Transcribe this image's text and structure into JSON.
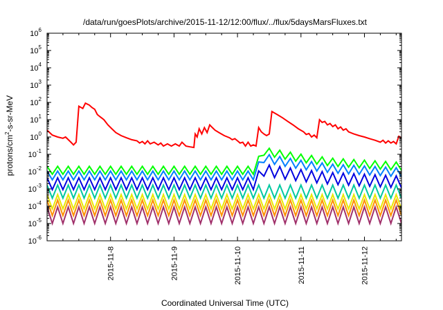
{
  "chart_data": {
    "type": "line",
    "title": "/data/run/goesPlots/archive/2015-11-12/12:00/flux/../flux/5daysMarsFluxes.txt",
    "xlabel": "Coordinated Universal Time (UTC)",
    "ylabel": {
      "base": "protons/cm",
      "sup": "2",
      "rest": "-s-sr-MeV"
    },
    "y_scale": "log",
    "ylim": [
      1e-06,
      1000000.0
    ],
    "xlim": [
      "2015-11-07T00:00",
      "2015-11-12T14:00"
    ],
    "x_ticks": [
      "2015-11-8",
      "2015-11-9",
      "2015-11-10",
      "2015-11-11",
      "2015-11-12"
    ],
    "y_ticks": [
      {
        "base": "10",
        "exp": "-6"
      },
      {
        "base": "10",
        "exp": "-5"
      },
      {
        "base": "10",
        "exp": "-4"
      },
      {
        "base": "10",
        "exp": "-3"
      },
      {
        "base": "10",
        "exp": "-2"
      },
      {
        "base": "10",
        "exp": "-1"
      },
      {
        "base": "10",
        "exp": "0"
      },
      {
        "base": "10",
        "exp": "1"
      },
      {
        "base": "10",
        "exp": "2"
      },
      {
        "base": "10",
        "exp": "3"
      },
      {
        "base": "10",
        "exp": "4"
      },
      {
        "base": "10",
        "exp": "5"
      },
      {
        "base": "10",
        "exp": "6"
      }
    ],
    "grid": false,
    "legend": "none",
    "series": [
      {
        "color": "#ff0000",
        "points": [
          [
            "2015-11-07T00:00",
            2.5
          ],
          [
            "2015-11-07T02:00",
            1.3
          ],
          [
            "2015-11-07T04:00",
            1.0
          ],
          [
            "2015-11-07T06:00",
            0.85
          ],
          [
            "2015-11-07T07:00",
            1.0
          ],
          [
            "2015-11-07T09:00",
            0.5
          ],
          [
            "2015-11-07T10:00",
            0.35
          ],
          [
            "2015-11-07T11:00",
            0.5
          ],
          [
            "2015-11-07T12:00",
            60
          ],
          [
            "2015-11-07T13:30",
            45
          ],
          [
            "2015-11-07T14:30",
            90
          ],
          [
            "2015-11-07T16:00",
            70
          ],
          [
            "2015-11-07T17:00",
            50
          ],
          [
            "2015-11-07T18:00",
            40
          ],
          [
            "2015-11-07T19:00",
            20
          ],
          [
            "2015-11-07T20:00",
            15
          ],
          [
            "2015-11-07T21:30",
            10
          ],
          [
            "2015-11-07T23:00",
            5
          ],
          [
            "2015-11-08T00:30",
            3
          ],
          [
            "2015-11-08T02:00",
            1.8
          ],
          [
            "2015-11-08T04:00",
            1.2
          ],
          [
            "2015-11-08T06:00",
            0.9
          ],
          [
            "2015-11-08T08:00",
            0.7
          ],
          [
            "2015-11-08T10:00",
            0.6
          ],
          [
            "2015-11-08T11:00",
            0.45
          ],
          [
            "2015-11-08T12:00",
            0.55
          ],
          [
            "2015-11-08T13:00",
            0.4
          ],
          [
            "2015-11-08T14:00",
            0.6
          ],
          [
            "2015-11-08T15:00",
            0.4
          ],
          [
            "2015-11-08T16:30",
            0.5
          ],
          [
            "2015-11-08T18:00",
            0.35
          ],
          [
            "2015-11-08T19:00",
            0.45
          ],
          [
            "2015-11-08T20:00",
            0.3
          ],
          [
            "2015-11-08T21:30",
            0.4
          ],
          [
            "2015-11-08T23:00",
            0.3
          ],
          [
            "2015-11-09T00:30",
            0.4
          ],
          [
            "2015-11-09T02:00",
            0.3
          ],
          [
            "2015-11-09T03:00",
            0.5
          ],
          [
            "2015-11-09T04:30",
            0.3
          ],
          [
            "2015-11-09T06:00",
            0.27
          ],
          [
            "2015-11-09T07:30",
            0.25
          ],
          [
            "2015-11-09T08:00",
            1.5
          ],
          [
            "2015-11-09T08:45",
            1.0
          ],
          [
            "2015-11-09T09:30",
            3.0
          ],
          [
            "2015-11-09T10:30",
            1.5
          ],
          [
            "2015-11-09T11:30",
            3.5
          ],
          [
            "2015-11-09T12:30",
            1.8
          ],
          [
            "2015-11-09T13:30",
            5.0
          ],
          [
            "2015-11-09T14:30",
            3.5
          ],
          [
            "2015-11-09T15:30",
            2.5
          ],
          [
            "2015-11-09T17:00",
            1.8
          ],
          [
            "2015-11-09T19:00",
            1.2
          ],
          [
            "2015-11-09T21:00",
            0.9
          ],
          [
            "2015-11-09T22:00",
            0.7
          ],
          [
            "2015-11-09T23:00",
            0.8
          ],
          [
            "2015-11-10T00:00",
            0.6
          ],
          [
            "2015-11-10T01:00",
            0.45
          ],
          [
            "2015-11-10T02:00",
            0.5
          ],
          [
            "2015-11-10T03:00",
            0.3
          ],
          [
            "2015-11-10T04:00",
            0.5
          ],
          [
            "2015-11-10T05:00",
            0.3
          ],
          [
            "2015-11-10T06:00",
            0.35
          ],
          [
            "2015-11-10T07:00",
            0.3
          ],
          [
            "2015-11-10T08:00",
            3.5
          ],
          [
            "2015-11-10T09:00",
            2.0
          ],
          [
            "2015-11-10T10:00",
            1.5
          ],
          [
            "2015-11-10T11:00",
            1.2
          ],
          [
            "2015-11-10T12:00",
            1.5
          ],
          [
            "2015-11-10T13:00",
            30
          ],
          [
            "2015-11-10T15:00",
            20
          ],
          [
            "2015-11-10T17:00",
            13
          ],
          [
            "2015-11-10T19:00",
            8
          ],
          [
            "2015-11-10T21:00",
            5
          ],
          [
            "2015-11-10T23:00",
            3
          ],
          [
            "2015-11-11T01:00",
            2
          ],
          [
            "2015-11-11T02:00",
            1.4
          ],
          [
            "2015-11-11T03:00",
            1.6
          ],
          [
            "2015-11-11T04:00",
            1.0
          ],
          [
            "2015-11-11T05:00",
            1.3
          ],
          [
            "2015-11-11T06:00",
            0.9
          ],
          [
            "2015-11-11T07:00",
            10
          ],
          [
            "2015-11-11T08:00",
            7
          ],
          [
            "2015-11-11T09:00",
            8
          ],
          [
            "2015-11-11T10:00",
            5
          ],
          [
            "2015-11-11T11:00",
            6
          ],
          [
            "2015-11-11T12:00",
            4
          ],
          [
            "2015-11-11T13:00",
            5
          ],
          [
            "2015-11-11T14:00",
            3
          ],
          [
            "2015-11-11T15:00",
            3.8
          ],
          [
            "2015-11-11T16:00",
            2.5
          ],
          [
            "2015-11-11T17:00",
            3.0
          ],
          [
            "2015-11-11T18:00",
            2.0
          ],
          [
            "2015-11-11T20:00",
            1.5
          ],
          [
            "2015-11-11T22:00",
            1.2
          ],
          [
            "2015-11-12T00:00",
            1.0
          ],
          [
            "2015-11-12T02:00",
            0.8
          ],
          [
            "2015-11-12T04:00",
            0.65
          ],
          [
            "2015-11-12T06:00",
            0.5
          ],
          [
            "2015-11-12T07:00",
            0.65
          ],
          [
            "2015-11-12T08:00",
            0.45
          ],
          [
            "2015-11-12T09:00",
            0.6
          ],
          [
            "2015-11-12T10:00",
            0.45
          ],
          [
            "2015-11-12T11:00",
            0.55
          ],
          [
            "2015-11-12T12:00",
            0.4
          ],
          [
            "2015-11-12T13:00",
            1.1
          ],
          [
            "2015-11-12T14:00",
            0.9
          ]
        ]
      }
    ],
    "oscillating_series": [
      {
        "color": "#00ff00",
        "base": 0.012,
        "amp": 1.7,
        "period_hours": 4,
        "enhancement": {
          "start": "2015-11-10T08:00",
          "end": "2015-11-12T14:00",
          "values": [
            [
              "2015-11-10T08:00",
              0.045
            ],
            [
              "2015-11-10T10:00",
              0.15
            ],
            [
              "2015-11-11T00:00",
              0.06
            ],
            [
              "2015-11-11T12:00",
              0.035
            ],
            [
              "2015-11-12T14:00",
              0.02
            ]
          ]
        }
      },
      {
        "color": "#0080ff",
        "base": 0.006,
        "amp": 1.8,
        "period_hours": 4,
        "enhancement": {
          "start": "2015-11-10T08:00",
          "end": "2015-11-12T14:00",
          "values": [
            [
              "2015-11-10T08:00",
              0.02
            ],
            [
              "2015-11-10T10:00",
              0.06
            ],
            [
              "2015-11-11T00:00",
              0.025
            ],
            [
              "2015-11-11T12:00",
              0.015
            ],
            [
              "2015-11-12T14:00",
              0.009
            ]
          ]
        }
      },
      {
        "color": "#0000e0",
        "base": 0.002,
        "amp": 2.2,
        "period_hours": 4,
        "enhancement": {
          "start": "2015-11-10T08:00",
          "end": "2015-11-12T14:00",
          "values": [
            [
              "2015-11-10T08:00",
              0.005
            ],
            [
              "2015-11-10T10:00",
              0.012
            ],
            [
              "2015-11-11T00:00",
              0.006
            ],
            [
              "2015-11-11T12:00",
              0.004
            ],
            [
              "2015-11-12T14:00",
              0.0025
            ]
          ]
        }
      },
      {
        "color": "#00c8a0",
        "base": 0.0007,
        "amp": 2.4,
        "period_hours": 4
      },
      {
        "color": "#e8e800",
        "base": 0.00018,
        "amp": 2.6,
        "period_hours": 4
      },
      {
        "color": "#ff9000",
        "base": 8e-05,
        "amp": 2.8,
        "period_hours": 4
      },
      {
        "color": "#a0306a",
        "base": 3e-05,
        "amp": 3.0,
        "period_hours": 4
      }
    ]
  }
}
